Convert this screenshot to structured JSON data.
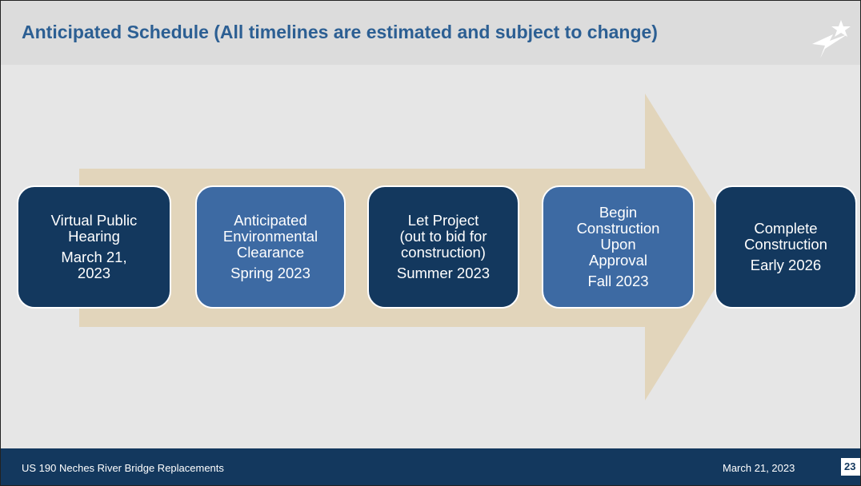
{
  "header": {
    "title": "Anticipated Schedule (All timelines are estimated and subject to change)"
  },
  "steps": [
    {
      "label": [
        "Virtual Public",
        "Hearing"
      ],
      "date": [
        "March 21,",
        "2023"
      ]
    },
    {
      "label": [
        "Anticipated",
        "Environmental",
        "Clearance"
      ],
      "date": [
        "Spring 2023"
      ]
    },
    {
      "label": [
        "Let Project",
        "(out to bid for",
        "construction)"
      ],
      "date": [
        "Summer 2023"
      ]
    },
    {
      "label": [
        "Begin",
        "Construction",
        "Upon",
        "Approval"
      ],
      "date": [
        "Fall 2023"
      ]
    },
    {
      "label": [
        "Complete",
        "Construction"
      ],
      "date": [
        "Early 2026"
      ]
    }
  ],
  "footer": {
    "left": "US 190 Neches River Bridge Replacements",
    "date": "March 21, 2023",
    "page": "23"
  }
}
